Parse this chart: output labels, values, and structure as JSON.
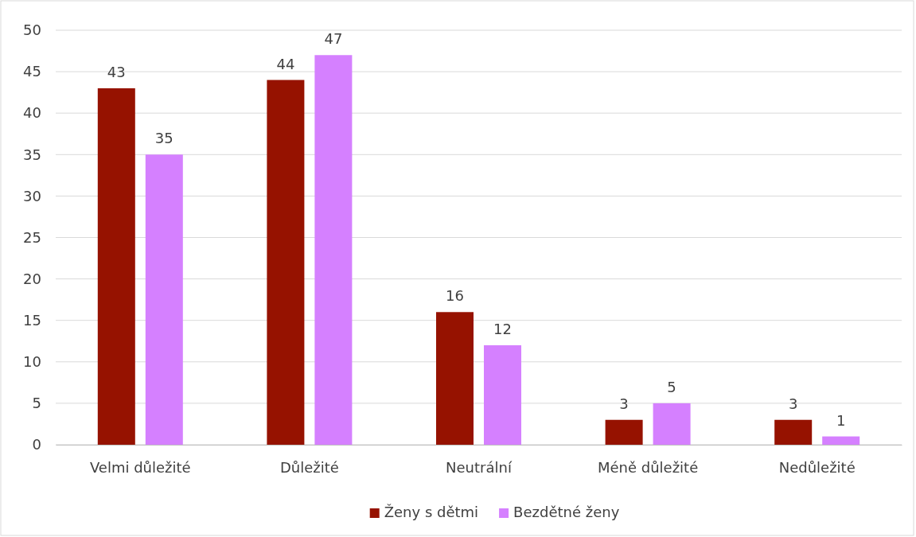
{
  "chart_data": {
    "type": "bar",
    "categories": [
      "Velmi důležité",
      "Důležité",
      "Neutrální",
      "Méně důležité",
      "Nedůležité"
    ],
    "series": [
      {
        "name": "Ženy s dětmi",
        "color": "#961200",
        "values": [
          43,
          44,
          16,
          3,
          3
        ]
      },
      {
        "name": "Bezdětné ženy",
        "color": "#d580ff",
        "values": [
          35,
          47,
          12,
          5,
          1
        ]
      }
    ],
    "ylim": [
      0,
      50
    ],
    "yticks": [
      0,
      5,
      10,
      15,
      20,
      25,
      30,
      35,
      40,
      45,
      50
    ],
    "grid": "y",
    "legend": "bottom",
    "data_labels": true
  }
}
